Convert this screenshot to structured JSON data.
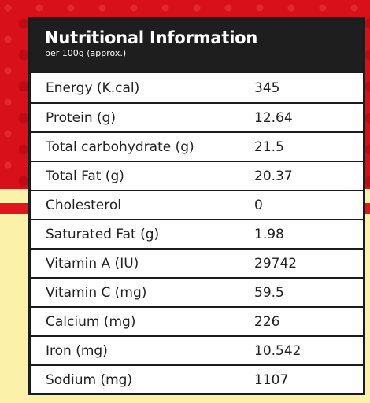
{
  "header": {
    "title": "Nutritional Information",
    "subtitle": "per 100g (approx.)"
  },
  "rows": [
    {
      "label": "Energy (K.cal)",
      "value": "345"
    },
    {
      "label": "Protein (g)",
      "value": "12.64"
    },
    {
      "label": "Total carbohydrate (g)",
      "value": "21.5"
    },
    {
      "label": "Total Fat (g)",
      "value": "20.37"
    },
    {
      "label": "Cholesterol",
      "value": "0"
    },
    {
      "label": "Saturated Fat (g)",
      "value": "1.98"
    },
    {
      "label": "Vitamin A (IU)",
      "value": "29742"
    },
    {
      "label": "Vitamin C (mg)",
      "value": "59.5"
    },
    {
      "label": "Calcium (mg)",
      "value": "226"
    },
    {
      "label": "Iron (mg)",
      "value": "10.542"
    },
    {
      "label": "Sodium (mg)",
      "value": "1107"
    }
  ],
  "colors": {
    "header_bg": "#1e1e1e",
    "background_red": "#d8101a",
    "background_yellow": "#fbf1a9"
  }
}
